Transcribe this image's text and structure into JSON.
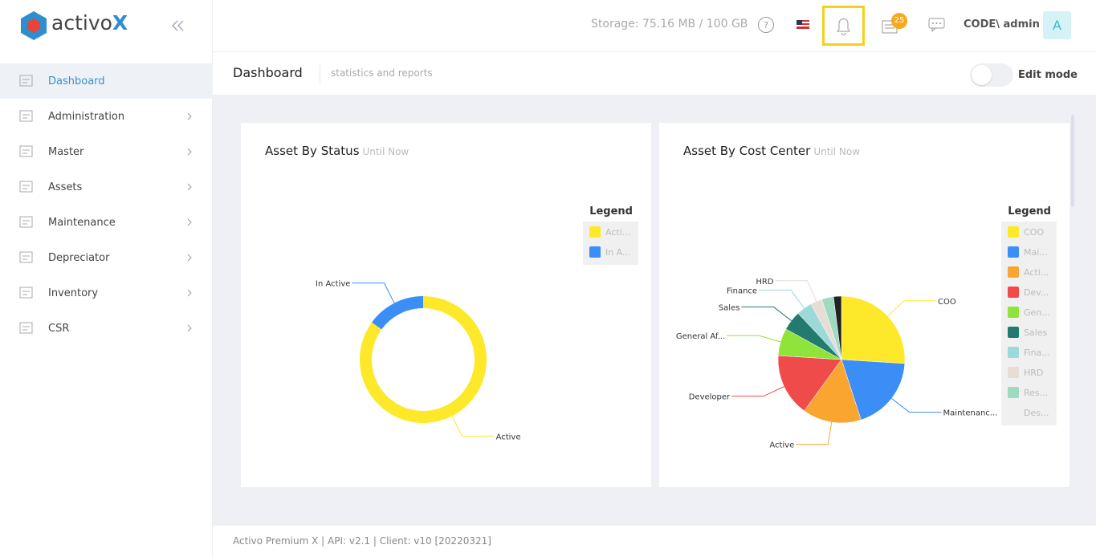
{
  "sidebar": {
    "brand": "activo",
    "brand_mark": "X",
    "menu": [
      "Dashboard",
      "Administration",
      "Master",
      "Assets",
      "Maintenance",
      "Depreciator",
      "Inventory",
      "CSR"
    ]
  },
  "header": {
    "storage": "Storage: 75.16 MB / 100 GB",
    "badge": "25",
    "user": "CODE\\ admin",
    "avatar": "A"
  },
  "page": {
    "title": "Dashboard",
    "subtitle": "statistics and reports",
    "edit_mode": "Edit mode"
  },
  "chart_data": [
    {
      "type": "donut",
      "title": "Asset By Status",
      "subtitle": "Until Now",
      "legend_title": "Legend",
      "legend": "right",
      "categories": [
        "Acti...",
        "In A..."
      ],
      "labels": [
        "Active",
        "In Active"
      ],
      "values": [
        85,
        15
      ],
      "colors": [
        "#fde92a",
        "#3a8ef6"
      ]
    },
    {
      "type": "pie",
      "title": "Asset By Cost Center",
      "subtitle": "Until Now",
      "legend_title": "Legend",
      "legend": "right",
      "categories": [
        "COO",
        "Mai...",
        "Acti...",
        "Dev...",
        "Gen...",
        "Sales",
        "Fina...",
        "HRD",
        "Res...",
        "Des..."
      ],
      "labels": [
        "COO",
        "Maintenanc...",
        "Active",
        "Developer",
        "General Af...",
        "Sales",
        "Finance",
        "HRD",
        null,
        null
      ],
      "values": [
        26,
        19,
        15,
        16,
        7,
        5,
        4,
        3,
        3,
        2
      ],
      "colors": [
        "#fde92a",
        "#3a8ef6",
        "#f9a530",
        "#f04b4b",
        "#8fe33a",
        "#237a6e",
        "#9dd9d9",
        "#e6ddd5",
        "#9fd9c0",
        "#222222"
      ]
    }
  ],
  "footer": "Activo Premium X | API: v2.1 | Client: v10 [20220321]"
}
